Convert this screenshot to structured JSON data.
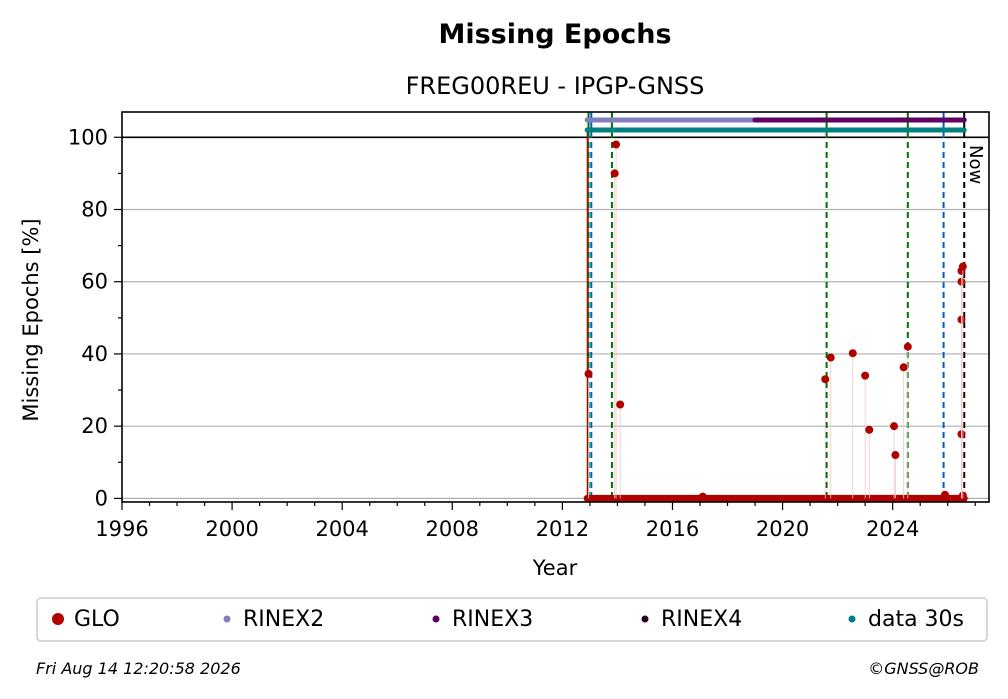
{
  "title": "Missing Epochs",
  "subtitle": "FREG00REU - IPGP-GNSS",
  "footer": {
    "timestamp": "Fri Aug 14 12:20:58 2026",
    "copyright": "©GNSS@ROB"
  },
  "now_label": "Now",
  "colors": {
    "glo": "#b00000",
    "rinex2": "#8080c0",
    "rinex3": "#600060",
    "rinex4": "#200020",
    "data30s": "#008080",
    "green_event": "#007000",
    "blue_event": "#0060c0"
  },
  "chart_data": {
    "type": "scatter",
    "title": "Missing Epochs",
    "subtitle": "FREG00REU - IPGP-GNSS",
    "xlabel": "Year",
    "ylabel": "Missing Epochs [%]",
    "xlim": [
      1996,
      2027.5
    ],
    "ylim": [
      -1,
      107
    ],
    "xticks": [
      "1996",
      "2000",
      "2004",
      "2008",
      "2012",
      "2016",
      "2020",
      "2024"
    ],
    "yticks": [
      "0",
      "20",
      "40",
      "60",
      "80",
      "100"
    ],
    "grid": "horizontal",
    "legend_position": "bottom",
    "legend": [
      "GLO",
      "RINEX2",
      "RINEX3",
      "RINEX4",
      "data 30s"
    ],
    "series": [
      {
        "name": "GLO",
        "color": "#b00000",
        "points": [
          [
            2012.95,
            34.5
          ],
          [
            2013.95,
            98
          ],
          [
            2013.9,
            90
          ],
          [
            2014.1,
            26
          ],
          [
            2017.1,
            0.5
          ],
          [
            2021.55,
            33
          ],
          [
            2021.75,
            39
          ],
          [
            2022.55,
            40.2
          ],
          [
            2023.0,
            34
          ],
          [
            2023.15,
            19
          ],
          [
            2024.05,
            20
          ],
          [
            2024.1,
            12
          ],
          [
            2024.4,
            36.3
          ],
          [
            2024.55,
            42
          ],
          [
            2025.9,
            1
          ],
          [
            2026.55,
            0.8
          ],
          [
            2026.5,
            17.8
          ],
          [
            2026.5,
            49.5
          ],
          [
            2026.5,
            60
          ],
          [
            2026.5,
            63
          ],
          [
            2026.55,
            64.2
          ]
        ],
        "baseline": {
          "from": 2012.9,
          "to": 2026.6,
          "value": 0
        }
      }
    ],
    "availability_bars": [
      {
        "name": "RINEX2",
        "color": "#8080c0",
        "from": 2012.9,
        "to": 2019.0,
        "y": 104.8
      },
      {
        "name": "RINEX3",
        "color": "#600060",
        "from": 2019.0,
        "to": 2026.6,
        "y": 104.8
      },
      {
        "name": "data 30s",
        "color": "#008080",
        "from": 2012.9,
        "to": 2026.6,
        "y": 102
      }
    ],
    "event_lines": [
      {
        "x": 2012.95,
        "color": "#007000"
      },
      {
        "x": 2013.05,
        "color": "#0060c0"
      },
      {
        "x": 2013.8,
        "color": "#007000"
      },
      {
        "x": 2021.6,
        "color": "#007000"
      },
      {
        "x": 2024.55,
        "color": "#007000"
      },
      {
        "x": 2025.85,
        "color": "#0060c0"
      }
    ],
    "red_line_x": 2012.92,
    "now_x": 2026.6
  }
}
